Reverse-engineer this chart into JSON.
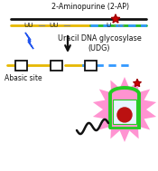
{
  "bg_color": "#ffffff",
  "title_text": "2-Aminopurine (2-AP)",
  "title_fontsize": 5.8,
  "enzyme_text": "Uracil DNA glycosylase\n(UDG)",
  "enzyme_fontsize": 5.8,
  "abasic_text": "Abasic site",
  "abasic_fontsize": 5.5,
  "strand1_color": "#111111",
  "strand2_color": "#e6b800",
  "strand3_color": "#3399ff",
  "strand4_color": "#22bb22",
  "star_color": "#cc0000",
  "lightning_color": "#2255ee",
  "arrow_color": "#111111",
  "box_color": "#111111",
  "glow_color": "#ff88cc",
  "g4_color": "#22cc22",
  "tail_color": "#111111"
}
